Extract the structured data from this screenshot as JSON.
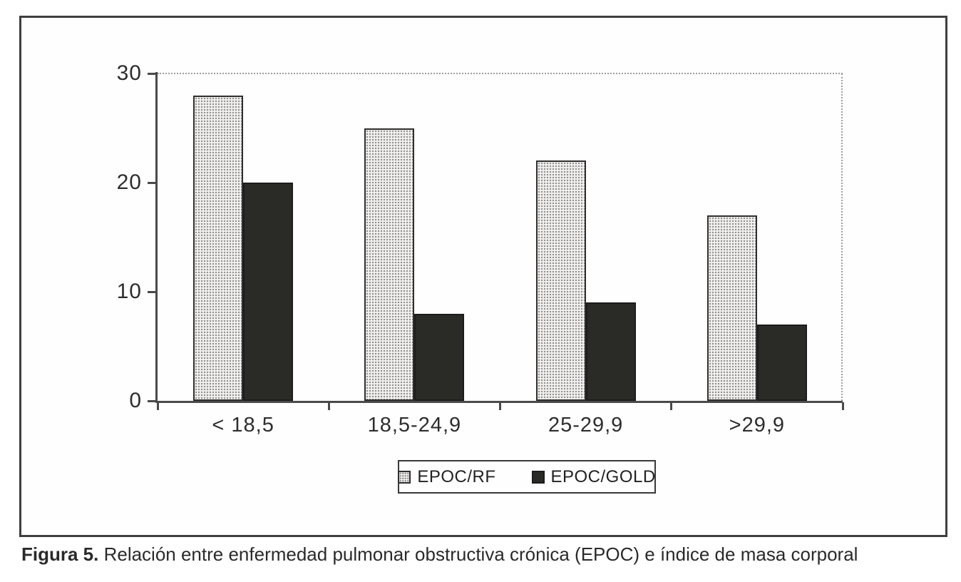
{
  "figure": {
    "caption_bold": "Figura 5.",
    "caption_rest": " Relación entre enfermedad pulmonar obstructiva crónica (EPOC) e índice de masa corporal"
  },
  "chart_data": {
    "type": "bar",
    "title": "",
    "xlabel": "",
    "ylabel": "",
    "categories": [
      "< 18,5",
      "18,5-24,9",
      "25-29,9",
      ">29,9"
    ],
    "series": [
      {
        "name": "EPOC/RF",
        "values": [
          28,
          25,
          22,
          17
        ],
        "style": "light-dotted-pattern"
      },
      {
        "name": "EPOC/GOLD",
        "values": [
          20,
          8,
          9,
          7
        ],
        "style": "solid-dark"
      }
    ],
    "ylim": [
      0,
      30
    ],
    "yticks": [
      0,
      10,
      20,
      30
    ],
    "grid": "top-and-right-dotted-frame-only",
    "legend_position": "bottom-center-boxed",
    "colors": {
      "rf_fill": "#f1f0ee",
      "rf_dot": "#8d8d8d",
      "gold_fill": "#2a2a27",
      "axis": "#4a4a4a",
      "figure_border": "#3f3f3f",
      "background": "#fefefe"
    }
  }
}
